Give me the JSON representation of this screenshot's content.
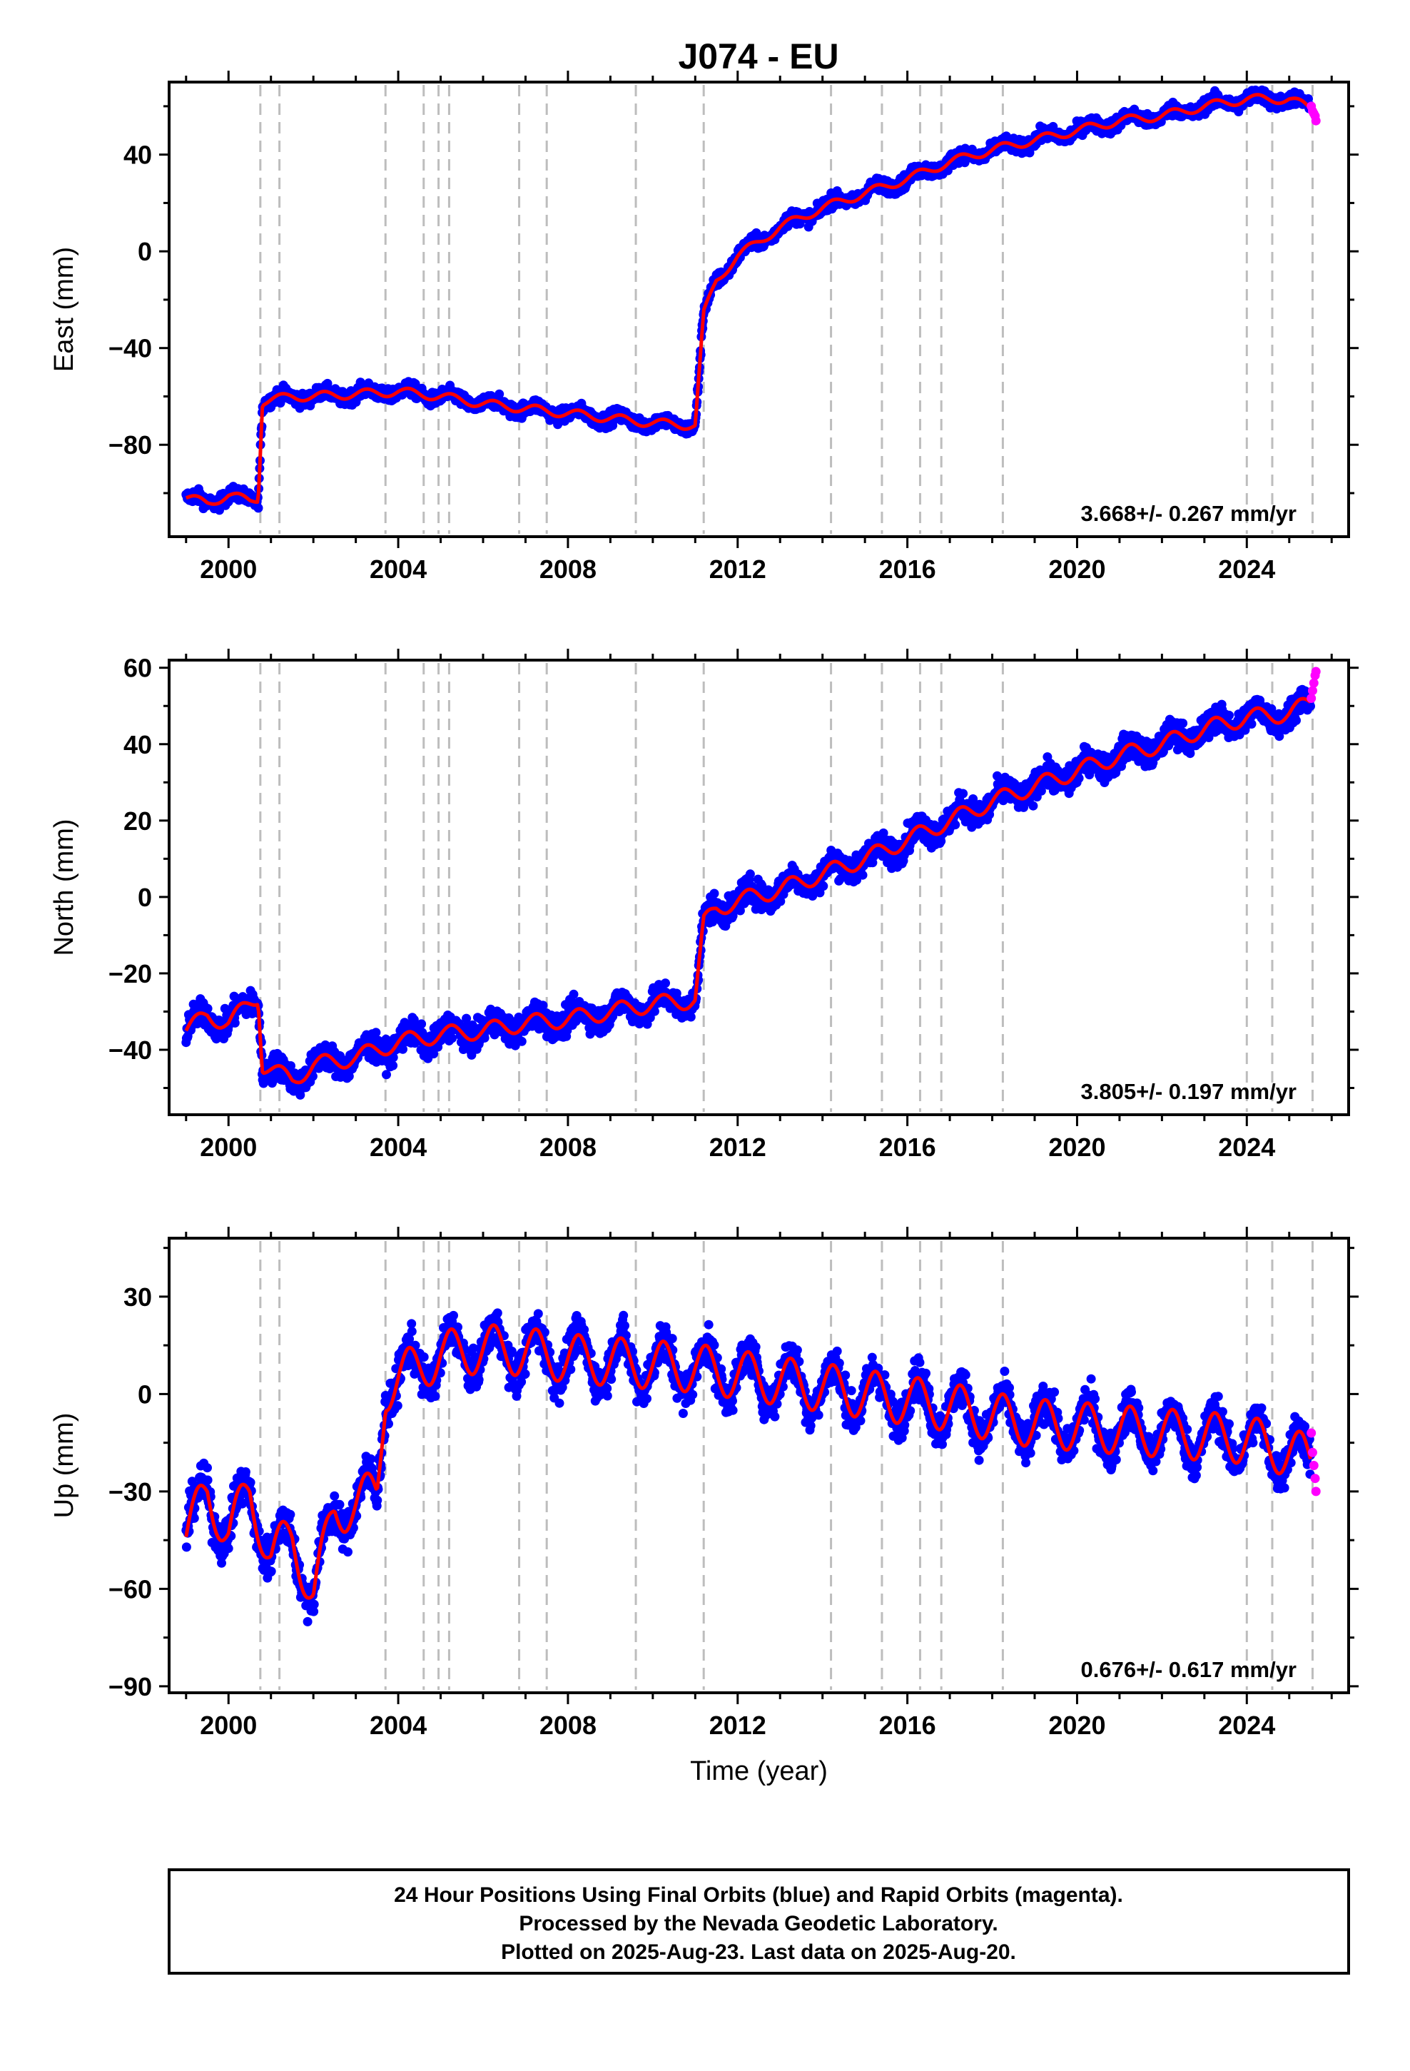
{
  "page_title": "J074 - EU",
  "footer": {
    "lines": [
      "24 Hour Positions Using Final Orbits (blue) and Rapid Orbits (magenta).",
      "Processed by the Nevada Geodetic Laboratory.",
      "Plotted on 2025-Aug-23. Last data on 2025-Aug-20."
    ]
  },
  "colors": {
    "final_orbits": "#0000ff",
    "rapid_orbits": "#ff00ff",
    "model": "#ff0000",
    "event_lines": "#bdbdbd"
  },
  "chart_data": [
    {
      "type": "scatter",
      "title": "J074 - EU",
      "ylabel": "East (mm)",
      "xlabel": "",
      "xlim": [
        1998.6,
        2026.4
      ],
      "ylim": [
        -118,
        70
      ],
      "xticks": [
        2000,
        2004,
        2008,
        2012,
        2016,
        2020,
        2024
      ],
      "yticks": [
        40,
        0,
        -40,
        -80
      ],
      "event_lines": [
        2000.75,
        2001.2,
        2003.7,
        2004.6,
        2004.95,
        2005.2,
        2006.85,
        2007.5,
        2009.6,
        2011.2,
        2014.2,
        2015.4,
        2016.3,
        2016.8,
        2018.25,
        2024.0,
        2024.6,
        2025.55
      ],
      "rate_text": "3.668+/- 0.267 mm/yr",
      "series": [
        {
          "name": "Final Orbits",
          "color": "#0000ff",
          "x": [
            1999.0,
            1999.5,
            2000.0,
            2000.5,
            2000.7,
            2000.8,
            2001.5,
            2002.0,
            2003.0,
            2004.0,
            2005.0,
            2006.0,
            2007.0,
            2008.0,
            2009.0,
            2010.0,
            2011.0,
            2011.2,
            2011.5,
            2012.0,
            2013.0,
            2014.0,
            2015.0,
            2016.0,
            2017.0,
            2018.0,
            2019.0,
            2020.0,
            2021.0,
            2022.0,
            2023.0,
            2024.0,
            2025.0,
            2025.5
          ],
          "y": [
            -102,
            -104,
            -101,
            -103,
            -102,
            -62,
            -60,
            -60,
            -59,
            -58,
            -60,
            -63,
            -65,
            -67,
            -69,
            -71,
            -72,
            -26,
            -12,
            -2,
            10,
            18,
            24,
            30,
            37,
            42,
            46,
            50,
            54,
            56,
            60,
            63,
            63,
            59
          ]
        },
        {
          "name": "Rapid Orbits",
          "color": "#ff00ff",
          "x": [
            2025.52,
            2025.55,
            2025.58,
            2025.61,
            2025.63
          ],
          "y": [
            60,
            58,
            57,
            56,
            54
          ]
        }
      ]
    },
    {
      "type": "scatter",
      "title": "",
      "ylabel": "North (mm)",
      "xlabel": "",
      "xlim": [
        1998.6,
        2026.4
      ],
      "ylim": [
        -57,
        62
      ],
      "xticks": [
        2000,
        2004,
        2008,
        2012,
        2016,
        2020,
        2024
      ],
      "yticks": [
        60,
        40,
        20,
        0,
        -20,
        -40
      ],
      "event_lines": [
        2000.75,
        2001.2,
        2003.7,
        2004.6,
        2004.95,
        2005.2,
        2006.85,
        2007.5,
        2009.6,
        2011.2,
        2014.2,
        2015.4,
        2016.3,
        2016.8,
        2018.25,
        2024.0,
        2024.6,
        2025.55
      ],
      "rate_text": "3.805+/- 0.197 mm/yr",
      "series": [
        {
          "name": "Final Orbits",
          "color": "#0000ff",
          "x": [
            1999.0,
            1999.5,
            2000.0,
            2000.5,
            2000.7,
            2000.8,
            2001.5,
            2002.0,
            2003.0,
            2004.0,
            2005.0,
            2006.0,
            2007.0,
            2008.0,
            2009.0,
            2010.0,
            2011.0,
            2011.2,
            2011.5,
            2012.0,
            2013.0,
            2014.0,
            2015.0,
            2016.0,
            2017.0,
            2018.0,
            2019.0,
            2020.0,
            2021.0,
            2022.0,
            2023.0,
            2024.0,
            2025.0,
            2025.5
          ],
          "y": [
            -35,
            -31,
            -33,
            -28,
            -26,
            -44,
            -48,
            -44,
            -42,
            -38,
            -36,
            -35,
            -33,
            -32,
            -30,
            -28,
            -27,
            -7,
            -3,
            -1,
            2,
            6,
            10,
            15,
            20,
            25,
            29,
            33,
            37,
            40,
            44,
            47,
            48,
            51
          ]
        },
        {
          "name": "Rapid Orbits",
          "color": "#ff00ff",
          "x": [
            2025.52,
            2025.55,
            2025.58,
            2025.61,
            2025.63
          ],
          "y": [
            52,
            54,
            56,
            58,
            59
          ]
        }
      ]
    },
    {
      "type": "scatter",
      "title": "",
      "ylabel": "Up (mm)",
      "xlabel": "Time (year)",
      "xlim": [
        1998.6,
        2026.4
      ],
      "ylim": [
        -92,
        48
      ],
      "xticks": [
        2000,
        2004,
        2008,
        2012,
        2016,
        2020,
        2024
      ],
      "yticks": [
        30,
        0,
        -30,
        -60,
        -90
      ],
      "event_lines": [
        2000.75,
        2001.2,
        2003.7,
        2004.6,
        2004.95,
        2005.2,
        2006.85,
        2007.5,
        2009.6,
        2011.2,
        2014.2,
        2015.4,
        2016.3,
        2016.8,
        2018.25,
        2024.0,
        2024.6,
        2025.55
      ],
      "rate_text": "0.676+/- 0.617 mm/yr",
      "series": [
        {
          "name": "Final Orbits",
          "color": "#0000ff",
          "x": [
            1999.0,
            1999.5,
            2000.0,
            2000.5,
            2001.0,
            2001.5,
            2002.0,
            2002.5,
            2003.0,
            2003.5,
            2003.7,
            2004.0,
            2005.0,
            2006.0,
            2007.0,
            2008.0,
            2009.0,
            2010.0,
            2011.0,
            2012.0,
            2013.0,
            2014.0,
            2015.0,
            2016.0,
            2017.0,
            2018.0,
            2019.0,
            2020.0,
            2021.0,
            2022.0,
            2023.0,
            2024.0,
            2025.0,
            2025.5
          ],
          "y": [
            -44,
            -30,
            -43,
            -30,
            -50,
            -44,
            -62,
            -36,
            -34,
            -30,
            2,
            5,
            12,
            14,
            13,
            11,
            10,
            9,
            8,
            6,
            4,
            2,
            0,
            -2,
            -4,
            -7,
            -9,
            -10,
            -11,
            -12,
            -13,
            -14,
            -18,
            -20
          ]
        },
        {
          "name": "Rapid Orbits",
          "color": "#ff00ff",
          "x": [
            2025.52,
            2025.55,
            2025.58,
            2025.61,
            2025.63
          ],
          "y": [
            -12,
            -18,
            -22,
            -26,
            -30
          ]
        }
      ]
    }
  ]
}
